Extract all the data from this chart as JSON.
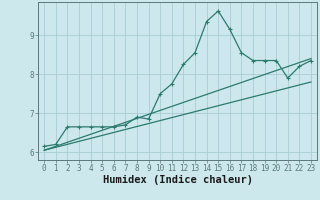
{
  "xlabel": "Humidex (Indice chaleur)",
  "bg_color": "#cce8ec",
  "grid_color": "#a8cdd1",
  "line_color": "#2d7a6e",
  "spine_color": "#5a7a7a",
  "xlim": [
    -0.5,
    23.5
  ],
  "ylim": [
    5.8,
    9.85
  ],
  "xticks": [
    0,
    1,
    2,
    3,
    4,
    5,
    6,
    7,
    8,
    9,
    10,
    11,
    12,
    13,
    14,
    15,
    16,
    17,
    18,
    19,
    20,
    21,
    22,
    23
  ],
  "yticks": [
    6,
    7,
    8,
    9
  ],
  "data_x": [
    0,
    1,
    2,
    3,
    4,
    5,
    6,
    7,
    8,
    9,
    10,
    11,
    12,
    13,
    14,
    15,
    16,
    17,
    18,
    19,
    20,
    21,
    22,
    23
  ],
  "data_y": [
    6.15,
    6.2,
    6.65,
    6.65,
    6.65,
    6.65,
    6.65,
    6.7,
    6.9,
    6.85,
    7.5,
    7.75,
    8.25,
    8.55,
    9.35,
    9.62,
    9.15,
    8.55,
    8.35,
    8.35,
    8.35,
    7.9,
    8.2,
    8.35
  ],
  "trend1_x": [
    0,
    23
  ],
  "trend1_y": [
    6.05,
    8.4
  ],
  "trend2_x": [
    0,
    23
  ],
  "trend2_y": [
    6.05,
    7.8
  ],
  "marker_size": 2.5,
  "linewidth": 0.9,
  "tick_fontsize": 5.5,
  "xlabel_fontsize": 7.5
}
